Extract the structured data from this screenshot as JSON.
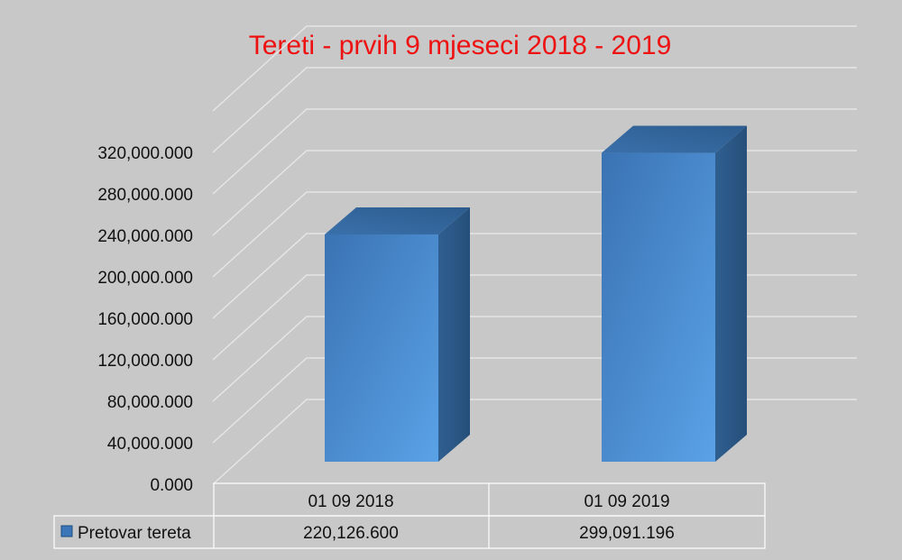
{
  "chart_data": {
    "type": "bar",
    "title": "Tereti - prvih 9 mjeseci 2018 - 2019",
    "categories": [
      "01 09 2018",
      "01 09 2019"
    ],
    "series": [
      {
        "name": "Pretovar tereta",
        "values": [
          220126600,
          299091196
        ],
        "value_labels": [
          "220,126.600",
          "299,091.196"
        ]
      }
    ],
    "yticks": [
      0,
      40000000,
      80000000,
      120000000,
      160000000,
      200000000,
      240000000,
      280000000,
      320000000
    ],
    "ytick_labels": [
      "0.000",
      "40,000.000",
      "80,000.000",
      "120,000.000",
      "160,000.000",
      "200,000.000",
      "240,000.000",
      "280,000.000",
      "320,000.000"
    ],
    "ylim": [
      0,
      360000000
    ],
    "grid": true,
    "legend": "data-table",
    "colors": {
      "bar_front": "#4a8fd4",
      "bar_side": "#2e5e8e",
      "bar_top": "#3a72ad",
      "title": "#ee1111"
    }
  }
}
